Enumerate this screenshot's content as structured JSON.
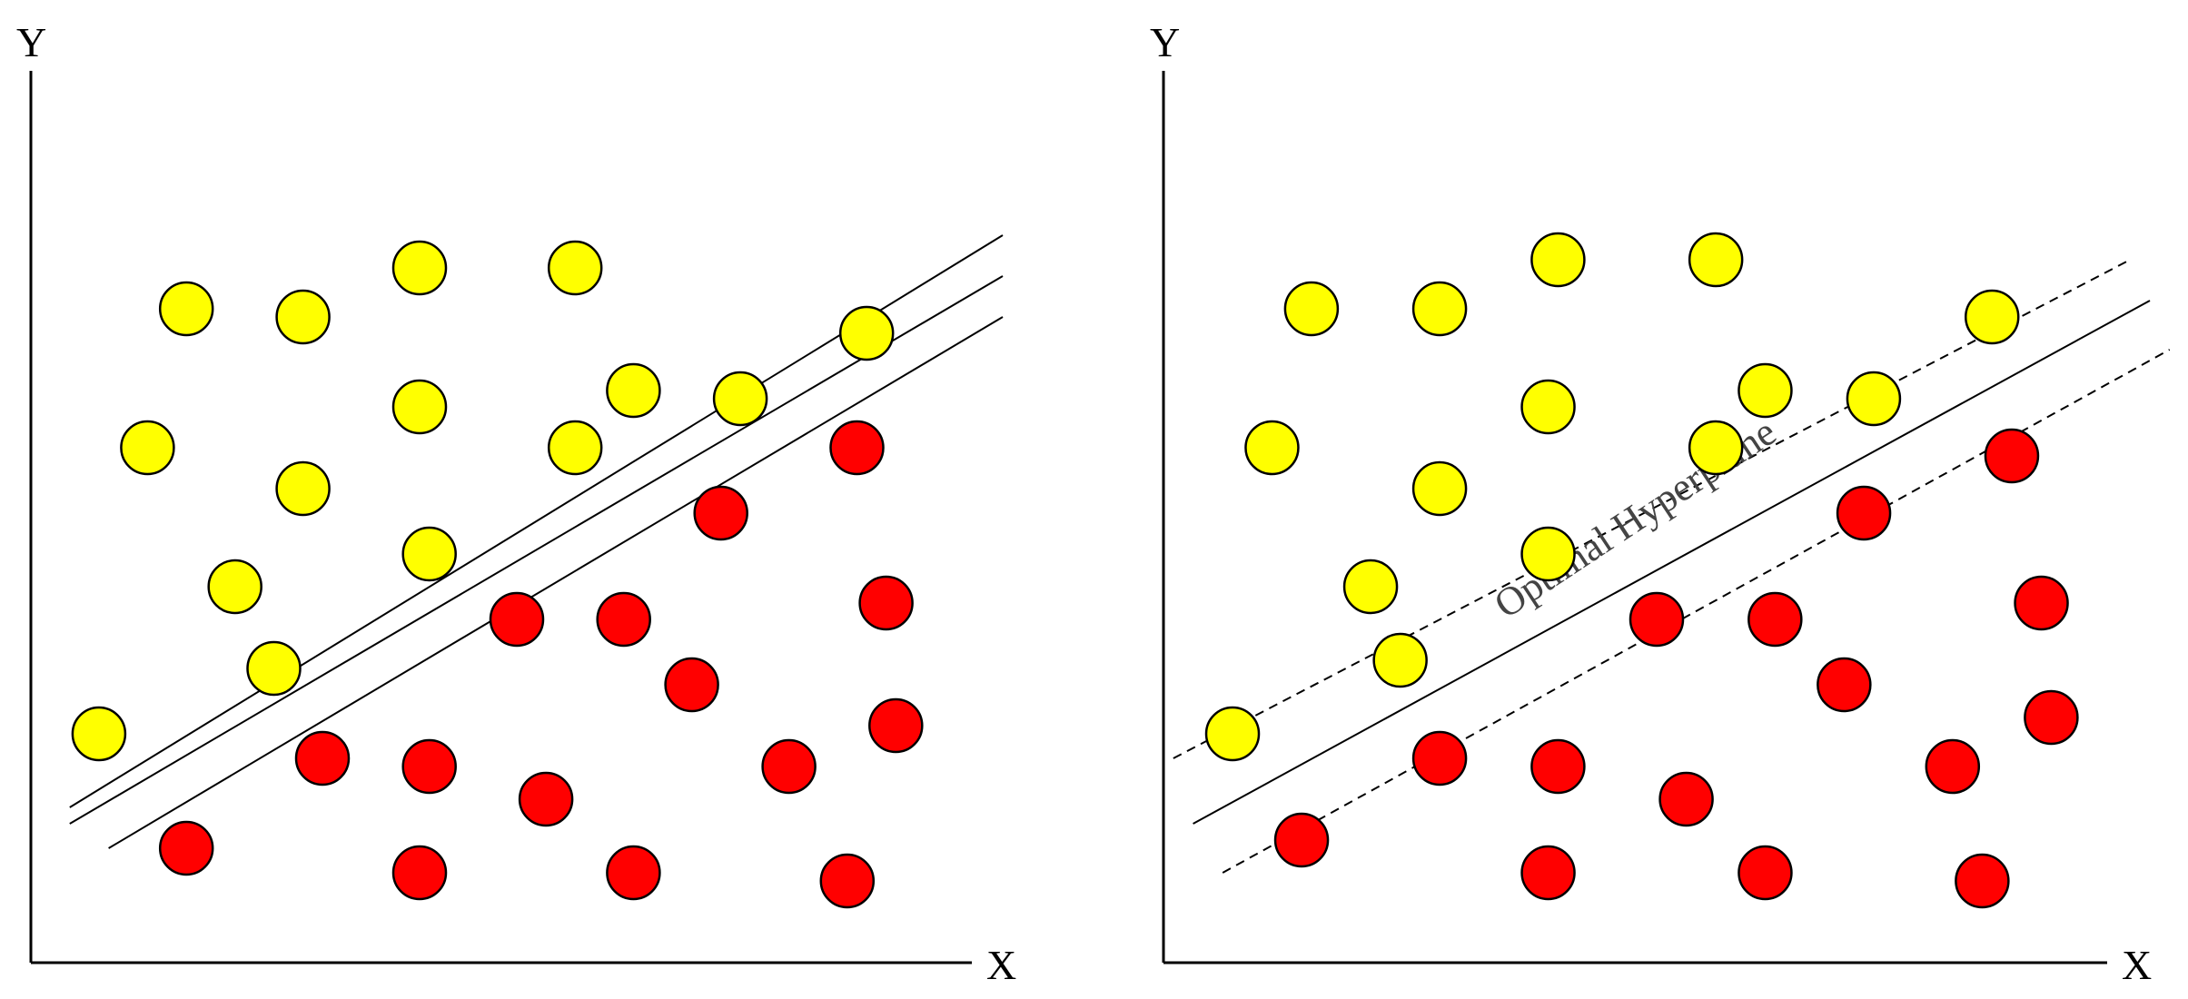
{
  "colors": {
    "class_yellow": "#ffff00",
    "class_red": "#ff0000",
    "outline": "#000000",
    "annotation": "#444444"
  },
  "panels": [
    {
      "id": "left",
      "y_axis_label": "Y",
      "x_axis_label": "X",
      "lines": [
        {
          "kind": "solid",
          "from": [
            0.04,
            0.19
          ],
          "to": [
            1.0,
            0.89
          ]
        },
        {
          "kind": "solid",
          "from": [
            0.04,
            0.17
          ],
          "to": [
            1.0,
            0.84
          ]
        },
        {
          "kind": "solid",
          "from": [
            0.08,
            0.14
          ],
          "to": [
            1.0,
            0.79
          ]
        }
      ],
      "points_yellow": [
        [
          0.16,
          0.8
        ],
        [
          0.28,
          0.79
        ],
        [
          0.4,
          0.85
        ],
        [
          0.56,
          0.85
        ],
        [
          0.86,
          0.77
        ],
        [
          0.12,
          0.63
        ],
        [
          0.28,
          0.58
        ],
        [
          0.4,
          0.68
        ],
        [
          0.56,
          0.63
        ],
        [
          0.62,
          0.7
        ],
        [
          0.73,
          0.69
        ],
        [
          0.21,
          0.46
        ],
        [
          0.41,
          0.5
        ],
        [
          0.25,
          0.36
        ],
        [
          0.07,
          0.28
        ]
      ],
      "points_red": [
        [
          0.85,
          0.63
        ],
        [
          0.71,
          0.55
        ],
        [
          0.5,
          0.42
        ],
        [
          0.61,
          0.42
        ],
        [
          0.88,
          0.44
        ],
        [
          0.68,
          0.34
        ],
        [
          0.89,
          0.29
        ],
        [
          0.3,
          0.25
        ],
        [
          0.41,
          0.24
        ],
        [
          0.53,
          0.2
        ],
        [
          0.78,
          0.24
        ],
        [
          0.16,
          0.14
        ],
        [
          0.4,
          0.11
        ],
        [
          0.62,
          0.11
        ],
        [
          0.84,
          0.1
        ]
      ]
    },
    {
      "id": "right",
      "y_axis_label": "Y",
      "x_axis_label": "X",
      "hyperplane_label": "Optimal Hyperplane",
      "lines": [
        {
          "kind": "solid",
          "from": [
            0.03,
            0.17
          ],
          "to": [
            1.0,
            0.81
          ]
        },
        {
          "kind": "dashed",
          "from": [
            0.01,
            0.25
          ],
          "to": [
            0.98,
            0.86
          ]
        },
        {
          "kind": "dashed",
          "from": [
            0.06,
            0.11
          ],
          "to": [
            1.02,
            0.75
          ]
        }
      ],
      "points_yellow": [
        [
          0.15,
          0.8
        ],
        [
          0.28,
          0.8
        ],
        [
          0.4,
          0.86
        ],
        [
          0.56,
          0.86
        ],
        [
          0.84,
          0.79
        ],
        [
          0.11,
          0.63
        ],
        [
          0.28,
          0.58
        ],
        [
          0.39,
          0.68
        ],
        [
          0.56,
          0.63
        ],
        [
          0.61,
          0.7
        ],
        [
          0.72,
          0.69
        ],
        [
          0.21,
          0.46
        ],
        [
          0.39,
          0.5
        ],
        [
          0.24,
          0.37
        ],
        [
          0.07,
          0.28
        ]
      ],
      "points_red": [
        [
          0.86,
          0.62
        ],
        [
          0.71,
          0.55
        ],
        [
          0.5,
          0.42
        ],
        [
          0.62,
          0.42
        ],
        [
          0.89,
          0.44
        ],
        [
          0.69,
          0.34
        ],
        [
          0.9,
          0.3
        ],
        [
          0.28,
          0.25
        ],
        [
          0.4,
          0.24
        ],
        [
          0.53,
          0.2
        ],
        [
          0.8,
          0.24
        ],
        [
          0.14,
          0.15
        ],
        [
          0.39,
          0.11
        ],
        [
          0.61,
          0.11
        ],
        [
          0.83,
          0.1
        ]
      ]
    }
  ]
}
